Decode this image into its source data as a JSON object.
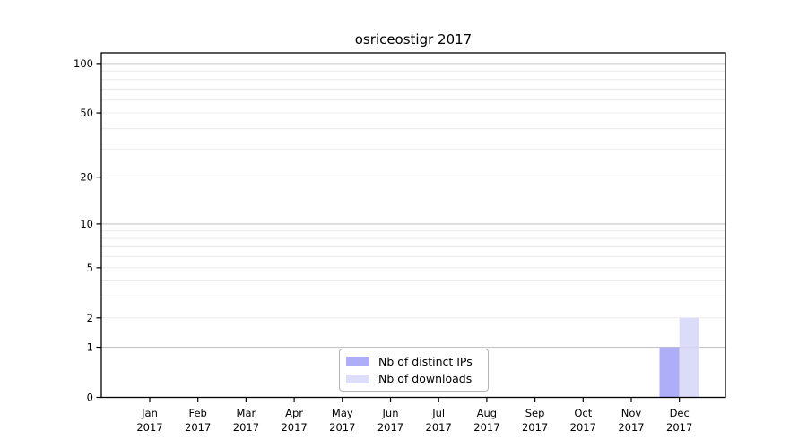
{
  "title": "osriceostigr 2017",
  "legend": {
    "items": [
      {
        "label": "Nb of distinct IPs",
        "color": "#adadf8"
      },
      {
        "label": "Nb of downloads",
        "color": "#dedefa"
      }
    ]
  },
  "chart_data": {
    "type": "bar",
    "title": "osriceostigr 2017",
    "categories": [
      "Jan 2017",
      "Feb 2017",
      "Mar 2017",
      "Apr 2017",
      "May 2017",
      "Jun 2017",
      "Jul 2017",
      "Aug 2017",
      "Sep 2017",
      "Oct 2017",
      "Nov 2017",
      "Dec 2017"
    ],
    "x_tick_months": [
      "Jan",
      "Feb",
      "Mar",
      "Apr",
      "May",
      "Jun",
      "Jul",
      "Aug",
      "Sep",
      "Oct",
      "Nov",
      "Dec"
    ],
    "x_tick_year": "2017",
    "series": [
      {
        "name": "Nb of distinct IPs",
        "color": "#adadf8",
        "values": [
          0,
          0,
          0,
          0,
          0,
          0,
          0,
          0,
          0,
          0,
          0,
          1
        ]
      },
      {
        "name": "Nb of downloads",
        "color": "#d6d6f8",
        "values": [
          0,
          0,
          0,
          0,
          0,
          0,
          0,
          0,
          0,
          0,
          0,
          2
        ]
      }
    ],
    "xlabel": "",
    "ylabel": "",
    "yscale": "log1p",
    "ylim": [
      0,
      116
    ],
    "y_ticks": [
      0,
      1,
      2,
      5,
      10,
      20,
      50,
      100
    ],
    "y_major_grid": [
      1,
      10,
      100
    ],
    "y_minor_grid": [
      2,
      3,
      4,
      5,
      6,
      7,
      8,
      9,
      20,
      30,
      40,
      50,
      60,
      70,
      80,
      90
    ],
    "grid": "horizontal",
    "legend_position": "lower center",
    "colors": {
      "axis": "#000000",
      "major_grid": "#c6c6c6",
      "minor_grid": "#ececec",
      "tick_label": "#000000"
    }
  }
}
